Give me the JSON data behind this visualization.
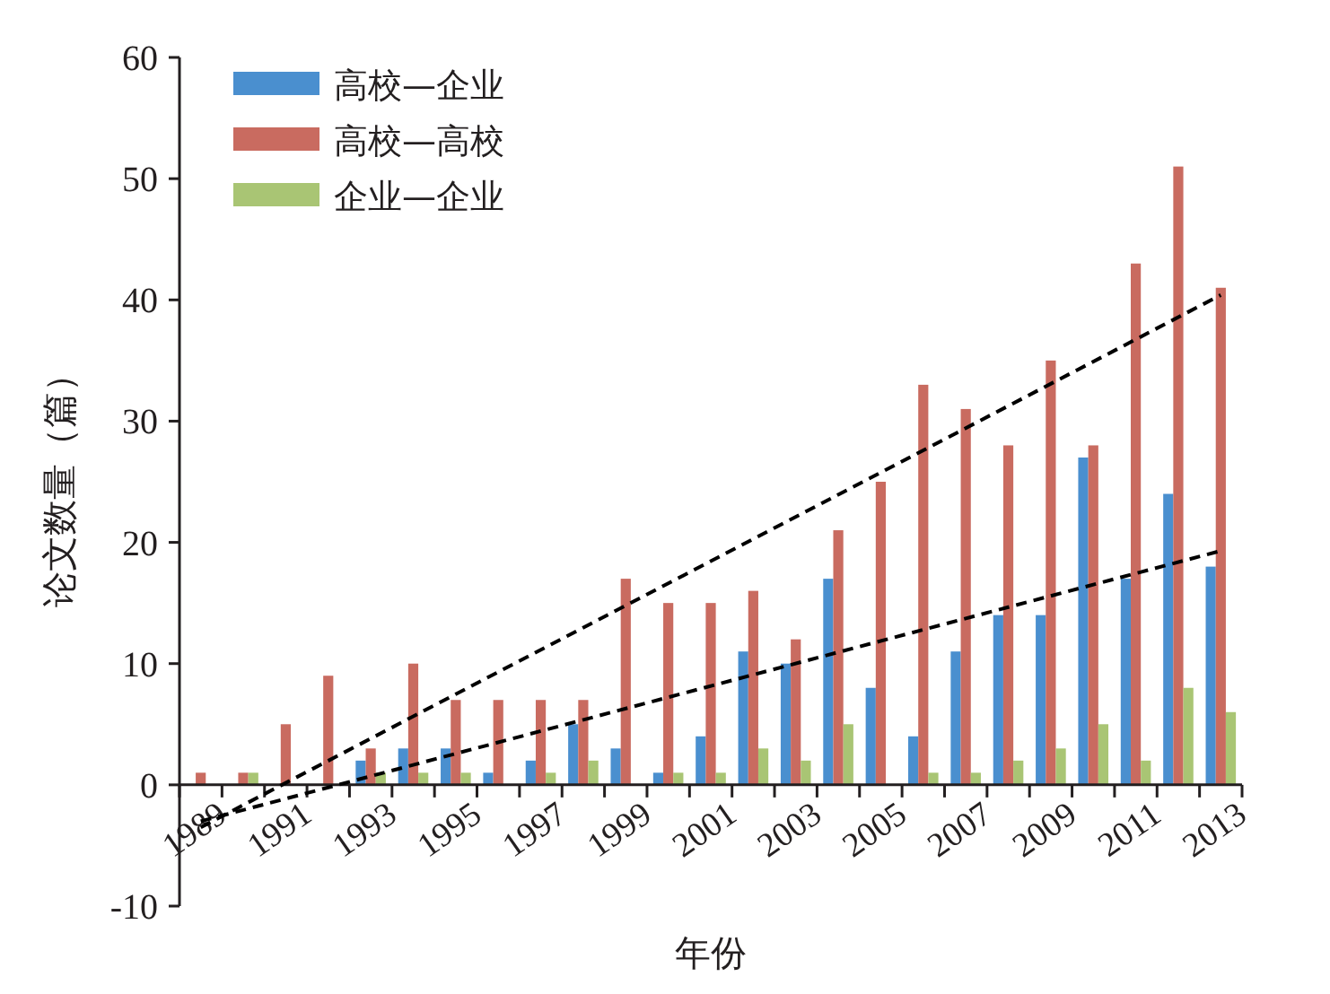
{
  "chart_data": {
    "type": "bar",
    "xlabel": "年份",
    "ylabel": "论文数量（篇）",
    "categories": [
      "1989",
      null,
      "1991",
      null,
      "1993",
      null,
      "1995",
      null,
      "1997",
      null,
      "1999",
      null,
      "2001",
      null,
      "2003",
      null,
      "2005",
      null,
      "2007",
      null,
      "2009",
      null,
      "2011",
      null,
      "2013"
    ],
    "series": [
      {
        "name": "高校—企业",
        "color": "#4a8fcf",
        "values": [
          0,
          0,
          0,
          0,
          2,
          3,
          3,
          1,
          2,
          5,
          3,
          1,
          4,
          11,
          10,
          17,
          8,
          4,
          11,
          14,
          14,
          27,
          17,
          24,
          18
        ]
      },
      {
        "name": "高校—高校",
        "color": "#c96b60",
        "values": [
          1,
          1,
          5,
          9,
          3,
          10,
          7,
          7,
          7,
          7,
          17,
          15,
          15,
          16,
          12,
          21,
          25,
          33,
          31,
          28,
          35,
          28,
          43,
          51,
          41
        ]
      },
      {
        "name": "企业—企业",
        "color": "#a9c574",
        "values": [
          0,
          1,
          0,
          0,
          1,
          1,
          1,
          0,
          1,
          2,
          0,
          1,
          1,
          3,
          2,
          5,
          0,
          1,
          1,
          2,
          3,
          5,
          2,
          8,
          6
        ]
      },
      {
        "type": "line",
        "color": "#000000",
        "line_style": "dashed",
        "values": [
          -3.5,
          null,
          null,
          null,
          null,
          null,
          null,
          null,
          null,
          null,
          null,
          null,
          null,
          null,
          null,
          null,
          null,
          null,
          null,
          null,
          null,
          null,
          null,
          null,
          40.4
        ]
      },
      {
        "type": "line",
        "color": "#000000",
        "line_style": "dashed",
        "values": [
          -3,
          null,
          null,
          null,
          null,
          null,
          null,
          null,
          null,
          null,
          null,
          null,
          null,
          null,
          null,
          null,
          null,
          null,
          null,
          null,
          null,
          null,
          null,
          null,
          19.3
        ]
      }
    ],
    "ylim": [
      -10,
      60
    ],
    "yticks": [
      -10,
      0,
      10,
      20,
      30,
      40,
      50,
      60
    ],
    "legend": "top left"
  }
}
